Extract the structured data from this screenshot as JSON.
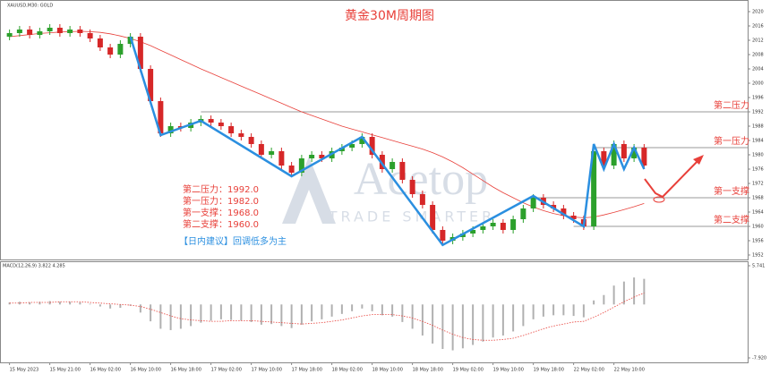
{
  "chart_data": {
    "type": "candlestick",
    "title": "黄金30M周期图",
    "symbol": "XAUUSD,M30: GOLD",
    "watermark": "Acetop",
    "watermark_sub": "TRADE SMARTER",
    "categories": [
      "15 May 2023",
      null,
      null,
      null,
      "15 May 21:00",
      null,
      null,
      null,
      "16 May 02:00",
      null,
      null,
      null,
      "16 May 10:00",
      null,
      null,
      null,
      "16 May 18:00",
      null,
      null,
      null,
      "17 May 02:00",
      null,
      null,
      null,
      "17 May 10:00",
      null,
      null,
      null,
      "17 May 18:00",
      null,
      null,
      null,
      "18 May 02:00",
      null,
      null,
      null,
      "18 May 10:00",
      null,
      null,
      null,
      "18 May 18:00",
      null,
      null,
      null,
      "19 May 02:00",
      null,
      null,
      null,
      "19 May 10:00",
      null,
      null,
      null,
      "19 May 18:00",
      null,
      null,
      null,
      "22 May 02:00",
      null,
      null,
      null,
      "22 May 10:00",
      null,
      null,
      null
    ],
    "open": [
      2013,
      2014,
      2015,
      2013.5,
      2014.5,
      2015.5,
      2014,
      2015,
      2014,
      2012.5,
      2010,
      2008,
      2011,
      2013,
      2004,
      1995,
      1986,
      1988,
      1987.5,
      1989,
      1990,
      1989,
      1988,
      1986,
      1985,
      1983,
      1980,
      1981,
      1977,
      1975,
      1979,
      1980,
      1979,
      1981,
      1982,
      1983,
      1985,
      1980,
      1976,
      1978,
      1973,
      1969,
      1966,
      1959,
      1956,
      1957,
      1958,
      1959,
      1960,
      1961,
      1959,
      1962,
      1965,
      1968,
      1966,
      1965,
      1963,
      1962,
      1960,
      1981,
      1977,
      1983,
      1979,
      1982
    ],
    "high": [
      2015,
      2016,
      2016,
      2015.5,
      2016.5,
      2016.5,
      2016,
      2016,
      2015,
      2013.5,
      2011,
      2012,
      2014,
      2014,
      2005,
      1996,
      1989,
      1989,
      1990,
      1991,
      1991,
      1990,
      1989,
      1987,
      1986,
      1984,
      1982,
      1982,
      1978,
      1980,
      1981,
      1981,
      1982,
      1983,
      1984,
      1986,
      1986,
      1981,
      1979,
      1979,
      1974,
      1970,
      1967,
      1960,
      1958,
      1959,
      1960,
      1961,
      1962,
      1962,
      1963,
      1966,
      1969,
      1969,
      1967,
      1966,
      1964,
      1963,
      1982,
      1982,
      1984,
      1984,
      1983,
      1983
    ],
    "low": [
      2012,
      2013,
      2012.5,
      2012.5,
      2013.5,
      2013,
      2013,
      2013,
      2011.5,
      2009,
      2007,
      2007,
      2010,
      2003,
      1994,
      1985,
      1985,
      1986.5,
      1986.5,
      1988,
      1988,
      1987,
      1985,
      1984,
      1982,
      1979,
      1979,
      1976,
      1974,
      1974,
      1978,
      1978,
      1978,
      1980,
      1981,
      1982,
      1979,
      1975,
      1975,
      1972,
      1968,
      1965,
      1958,
      1955,
      1955,
      1956,
      1957,
      1958,
      1959,
      1958,
      1958,
      1961,
      1964,
      1965,
      1964,
      1962,
      1961,
      1959,
      1959,
      1976,
      1976,
      1978,
      1978,
      1976
    ],
    "close": [
      2014,
      2015,
      2013.5,
      2014.5,
      2015.5,
      2014,
      2015,
      2014,
      2012.5,
      2010,
      2008,
      2011,
      2013,
      2004,
      1995,
      1986,
      1988,
      1987.5,
      1989,
      1990,
      1989,
      1988,
      1986,
      1985,
      1983,
      1980,
      1981,
      1977,
      1975,
      1979,
      1980,
      1979,
      1981,
      1982,
      1983,
      1985,
      1980,
      1976,
      1978,
      1973,
      1969,
      1966,
      1959,
      1956,
      1957,
      1958,
      1959,
      1960,
      1961,
      1959,
      1962,
      1965,
      1968,
      1966,
      1965,
      1963,
      1962,
      1960,
      1981,
      1977,
      1983,
      1979,
      1982,
      1977
    ],
    "up_color": "#2ca02c",
    "down_color": "#d62728",
    "ma": {
      "color": "#e8403a",
      "values": [
        2013,
        2013.3,
        2013.6,
        2013.9,
        2014.1,
        2014.3,
        2014.4,
        2014.5,
        2014.4,
        2014.2,
        2013.8,
        2013.2,
        2012.5,
        2011.6,
        2010.5,
        2009.2,
        2007.9,
        2006.6,
        2005.3,
        2004,
        2002.8,
        2001.6,
        2000.4,
        1999.2,
        1998,
        1996.8,
        1995.6,
        1994.4,
        1993.2,
        1992,
        1991,
        1990,
        1989,
        1988,
        1987.2,
        1986.4,
        1985.6,
        1984.8,
        1984,
        1983.2,
        1982.4,
        1981.6,
        1980.6,
        1979.4,
        1978,
        1976.4,
        1974.6,
        1972.8,
        1971,
        1969.4,
        1968,
        1966.6,
        1965.4,
        1964.4,
        1963.6,
        1963,
        1962.6,
        1962.4,
        1962.6,
        1963.2,
        1963.9,
        1964.7,
        1965.5,
        1966.4
      ]
    },
    "zigzag": {
      "color": "#2b8fe0",
      "x": [
        12,
        15,
        19,
        28,
        35,
        43,
        52,
        57,
        58,
        59,
        60,
        61,
        62,
        63
      ],
      "y": [
        2013,
        1985.5,
        1989.5,
        1974,
        1985,
        1954.8,
        1968.5,
        1960,
        1983,
        1976,
        1983,
        1976,
        1982,
        1976
      ]
    },
    "ylim": [
      1950.75,
      2020.75
    ],
    "yticks": [
      1952,
      1956,
      1960,
      1964,
      1968,
      1972,
      1976,
      1980,
      1984,
      1988,
      1992,
      1996,
      2000,
      2004,
      2008,
      2012,
      2016,
      2020
    ],
    "levels": [
      {
        "name": "第二压力",
        "value": 1992,
        "from": 19
      },
      {
        "name": "第一压力",
        "value": 1982,
        "from": 58
      },
      {
        "name": "第一支撑",
        "value": 1968,
        "from": 52
      },
      {
        "name": "第二支撑",
        "value": 1960,
        "from": 56
      }
    ],
    "notes": [
      "第二压力：1992.0",
      "第一压力：1982.0",
      "第一支撑：1968.0",
      "第二支撑：1960.0"
    ],
    "advice": "【日内建议】回调低多为主",
    "macd": {
      "label": "MACD(12,26,9) 3.822 4.285",
      "hist_color": "#b0b0b0",
      "signal_color": "#e8403a",
      "hist": [
        0.3,
        0.4,
        0.3,
        0.4,
        0.5,
        0.4,
        0.4,
        0.3,
        0.1,
        -0.3,
        -0.6,
        -0.5,
        -0.2,
        -1.2,
        -2.5,
        -3.6,
        -3.8,
        -3.6,
        -3.2,
        -2.7,
        -2.4,
        -2.2,
        -2.3,
        -2.4,
        -2.6,
        -3,
        -2.9,
        -3.2,
        -3.5,
        -3,
        -2.5,
        -2.2,
        -1.8,
        -1.4,
        -1,
        -0.6,
        -1,
        -1.6,
        -1.8,
        -2.6,
        -3.6,
        -4.6,
        -5.8,
        -6.6,
        -6.8,
        -6.5,
        -6,
        -5.5,
        -4.9,
        -4.6,
        -4,
        -3.2,
        -2.2,
        -1.8,
        -1.6,
        -1.6,
        -1.7,
        -1.9,
        0.6,
        1.4,
        2.8,
        3.4,
        4,
        3.8
      ],
      "signal": [
        0.2,
        0.2,
        0.3,
        0.3,
        0.3,
        0.4,
        0.4,
        0.4,
        0.3,
        0.2,
        0.1,
        0,
        -0.1,
        -0.3,
        -0.7,
        -1.2,
        -1.7,
        -2.1,
        -2.3,
        -2.4,
        -2.5,
        -2.5,
        -2.4,
        -2.4,
        -2.4,
        -2.5,
        -2.6,
        -2.7,
        -2.8,
        -2.9,
        -2.8,
        -2.7,
        -2.5,
        -2.3,
        -2,
        -1.7,
        -1.5,
        -1.5,
        -1.5,
        -1.7,
        -2,
        -2.5,
        -3.1,
        -3.8,
        -4.4,
        -4.9,
        -5.2,
        -5.3,
        -5.3,
        -5.2,
        -5,
        -4.6,
        -4.1,
        -3.6,
        -3.2,
        -2.9,
        -2.6,
        -2.5,
        -1.9,
        -1.2,
        -0.4,
        0.4,
        1.1,
        1.7
      ],
      "ylim": [
        -7.92,
        5.741
      ],
      "yticks": [
        {
          "value": 5.741,
          "label": "5.741"
        },
        {
          "value": -7.92,
          "label": "-7.920"
        }
      ]
    }
  }
}
